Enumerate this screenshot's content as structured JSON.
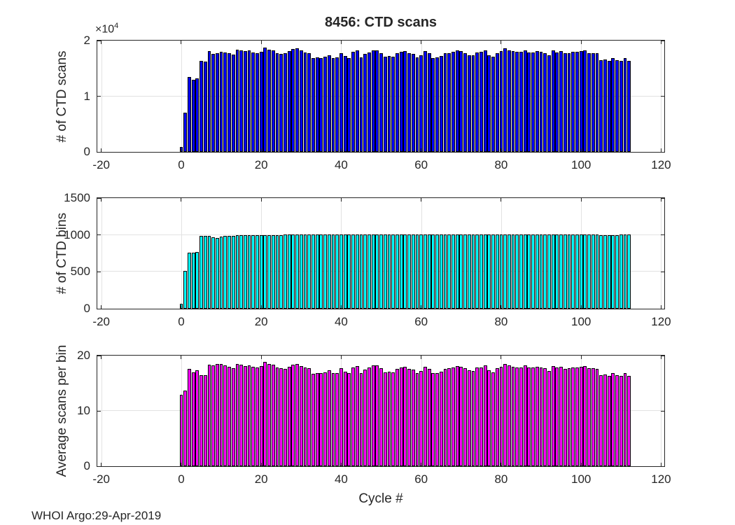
{
  "figure": {
    "title": "8456: CTD scans",
    "footer": "WHOI Argo:29-Apr-2019",
    "background": "#ffffff",
    "text_color": "#262626",
    "axis_color": "#262626",
    "grid_color": "#e2e2e2"
  },
  "chart_data": [
    {
      "type": "bar",
      "title": "8456: CTD scans",
      "ylabel": "# of CTD scans",
      "bar_color": "#0000ff",
      "bar_edge_color": "#000000",
      "grid": true,
      "xlim": [
        -21,
        120.8
      ],
      "ylim": [
        0,
        20000
      ],
      "xticks": [
        -20,
        0,
        20,
        40,
        60,
        80,
        100,
        120
      ],
      "xtick_labels": [
        "-20",
        "0",
        "20",
        "40",
        "60",
        "80",
        "100",
        "120"
      ],
      "yticks": [
        0,
        10000,
        20000
      ],
      "ytick_labels": [
        "0",
        "1",
        "2"
      ],
      "exponent": {
        "prefix": "×10",
        "power": "4"
      },
      "cycles_start": 0,
      "values": [
        900,
        7000,
        13400,
        12900,
        13200,
        16300,
        16200,
        18100,
        17600,
        17800,
        18000,
        17900,
        17700,
        17500,
        18400,
        18200,
        18100,
        18200,
        17900,
        17800,
        18000,
        18700,
        18400,
        18300,
        17800,
        17600,
        17700,
        18100,
        18500,
        18600,
        18200,
        17900,
        17800,
        16800,
        17000,
        16900,
        17100,
        17400,
        16900,
        17000,
        17800,
        17200,
        16900,
        18000,
        18200,
        17000,
        17600,
        17900,
        18300,
        18300,
        17800,
        17100,
        17200,
        17100,
        17700,
        18000,
        18100,
        17700,
        17600,
        17000,
        17300,
        18100,
        17700,
        16900,
        17000,
        17200,
        17700,
        17800,
        18000,
        18200,
        18100,
        17800,
        17400,
        17300,
        17900,
        18000,
        18300,
        17400,
        17100,
        17800,
        18100,
        18600,
        18300,
        18100,
        18000,
        18000,
        18300,
        17900,
        17900,
        18100,
        18000,
        17800,
        17300,
        18200,
        17900,
        18100,
        17700,
        17800,
        18000,
        18000,
        18100,
        18200,
        17800,
        17800,
        17700,
        16500,
        16600,
        16300,
        16900,
        16500,
        16400,
        16900,
        16400
      ]
    },
    {
      "type": "bar",
      "ylabel": "# of CTD bins",
      "bar_color": "#00ffff",
      "bar_edge_color": "#000000",
      "grid": true,
      "xlim": [
        -21,
        120.8
      ],
      "ylim": [
        0,
        1500
      ],
      "xticks": [
        -20,
        0,
        20,
        40,
        60,
        80,
        100,
        120
      ],
      "xtick_labels": [
        "-20",
        "0",
        "20",
        "40",
        "60",
        "80",
        "100",
        "120"
      ],
      "yticks": [
        0,
        500,
        1000,
        1500
      ],
      "ytick_labels": [
        "0",
        "500",
        "1000",
        "1500"
      ],
      "cycles_start": 0,
      "values": [
        70,
        510,
        760,
        760,
        765,
        990,
        990,
        985,
        965,
        960,
        975,
        985,
        985,
        990,
        995,
        995,
        1000,
        1000,
        995,
        995,
        995,
        995,
        995,
        995,
        995,
        995,
        1005,
        1005,
        1005,
        1005,
        1005,
        1005,
        1005,
        1005,
        1005,
        1005,
        1005,
        1005,
        1005,
        1005,
        1005,
        1005,
        1005,
        1005,
        1005,
        1005,
        1005,
        1005,
        1005,
        1005,
        1005,
        1005,
        1005,
        1005,
        1005,
        1005,
        1005,
        1005,
        1005,
        1005,
        1005,
        1005,
        1005,
        1005,
        1005,
        1005,
        1005,
        1005,
        1005,
        1005,
        1005,
        1005,
        1005,
        1005,
        1005,
        1005,
        1005,
        1005,
        1005,
        1005,
        1005,
        1005,
        1005,
        1005,
        1005,
        1005,
        1005,
        1005,
        1005,
        1005,
        1005,
        1005,
        1005,
        1005,
        1005,
        1005,
        1005,
        1005,
        1005,
        1005,
        1005,
        1005,
        1005,
        1005,
        1005,
        1000,
        1000,
        1000,
        1000,
        1000,
        1005,
        1005,
        1005
      ]
    },
    {
      "type": "bar",
      "ylabel": "Average scans per bin",
      "xlabel": "Cycle #",
      "bar_color": "#ff00ff",
      "bar_edge_color": "#000000",
      "grid": true,
      "xlim": [
        -21,
        120.8
      ],
      "ylim": [
        0,
        20
      ],
      "xticks": [
        -20,
        0,
        20,
        40,
        60,
        80,
        100,
        120
      ],
      "xtick_labels": [
        "-20",
        "0",
        "20",
        "40",
        "60",
        "80",
        "100",
        "120"
      ],
      "yticks": [
        0,
        10,
        20
      ],
      "ytick_labels": [
        "0",
        "10",
        "20"
      ],
      "cycles_start": 0,
      "values": [
        12.9,
        13.7,
        17.6,
        17.0,
        17.3,
        16.5,
        16.4,
        18.4,
        18.2,
        18.5,
        18.5,
        18.2,
        18.0,
        17.7,
        18.5,
        18.3,
        18.1,
        18.2,
        18.0,
        17.9,
        18.1,
        18.8,
        18.5,
        18.4,
        17.9,
        17.7,
        17.6,
        18.0,
        18.4,
        18.5,
        18.1,
        17.8,
        17.7,
        16.7,
        16.9,
        16.8,
        17.0,
        17.3,
        16.8,
        16.9,
        17.7,
        17.1,
        16.8,
        17.9,
        18.1,
        16.9,
        17.5,
        17.8,
        18.2,
        18.2,
        17.7,
        17.0,
        17.1,
        17.0,
        17.6,
        17.9,
        18.0,
        17.6,
        17.5,
        16.9,
        17.2,
        18.0,
        17.6,
        16.8,
        16.9,
        17.1,
        17.6,
        17.7,
        17.9,
        18.1,
        18.0,
        17.7,
        17.3,
        17.2,
        17.8,
        17.9,
        18.2,
        17.3,
        17.0,
        17.7,
        18.0,
        18.5,
        18.2,
        18.0,
        17.9,
        17.9,
        18.2,
        17.8,
        17.8,
        18.0,
        17.9,
        17.7,
        17.2,
        18.1,
        17.8,
        18.0,
        17.6,
        17.7,
        17.9,
        17.9,
        18.0,
        18.1,
        17.7,
        17.7,
        17.6,
        16.5,
        16.6,
        16.3,
        16.9,
        16.5,
        16.3,
        16.8,
        16.3
      ]
    }
  ]
}
